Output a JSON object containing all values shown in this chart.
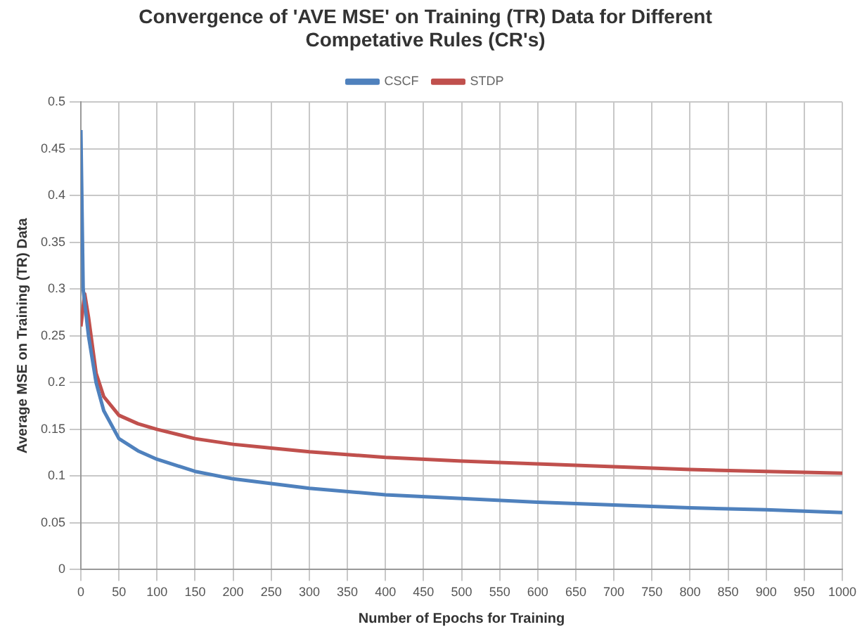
{
  "chart_data": {
    "type": "line",
    "title": [
      "Convergence of 'AVE MSE' on Training (TR) Data for Different",
      "Competative Rules (CR's)"
    ],
    "xlabel": "Number of Epochs for Training",
    "ylabel": "Average MSE on Training (TR) Data",
    "series": [
      {
        "name": "CSCF",
        "color": "#4f81bd",
        "x": [
          0,
          3,
          10,
          20,
          30,
          50,
          75,
          100,
          150,
          200,
          250,
          300,
          400,
          500,
          600,
          700,
          800,
          900,
          1000
        ],
        "values": [
          0.47,
          0.3,
          0.25,
          0.2,
          0.17,
          0.14,
          0.127,
          0.118,
          0.105,
          0.097,
          0.092,
          0.087,
          0.08,
          0.076,
          0.072,
          0.069,
          0.066,
          0.064,
          0.061
        ]
      },
      {
        "name": "STDP",
        "color": "#c0504d",
        "x": [
          0,
          5,
          10,
          20,
          30,
          50,
          75,
          100,
          150,
          200,
          250,
          300,
          400,
          500,
          600,
          700,
          800,
          900,
          1000
        ],
        "values": [
          0.26,
          0.295,
          0.27,
          0.21,
          0.185,
          0.165,
          0.156,
          0.15,
          0.14,
          0.134,
          0.13,
          0.126,
          0.12,
          0.116,
          0.113,
          0.11,
          0.107,
          0.105,
          0.103
        ]
      }
    ],
    "xlim": [
      0,
      1000
    ],
    "xticks": [
      0,
      50,
      100,
      150,
      200,
      250,
      300,
      350,
      400,
      450,
      500,
      550,
      600,
      650,
      700,
      750,
      800,
      850,
      900,
      950,
      1000
    ],
    "ylim": [
      0,
      0.5
    ],
    "yticks": [
      0,
      0.05,
      0.1,
      0.15,
      0.2,
      0.25,
      0.3,
      0.35,
      0.4,
      0.45,
      0.5
    ],
    "grid": true,
    "legend": "top",
    "marker": "none",
    "line_style": "solid"
  }
}
